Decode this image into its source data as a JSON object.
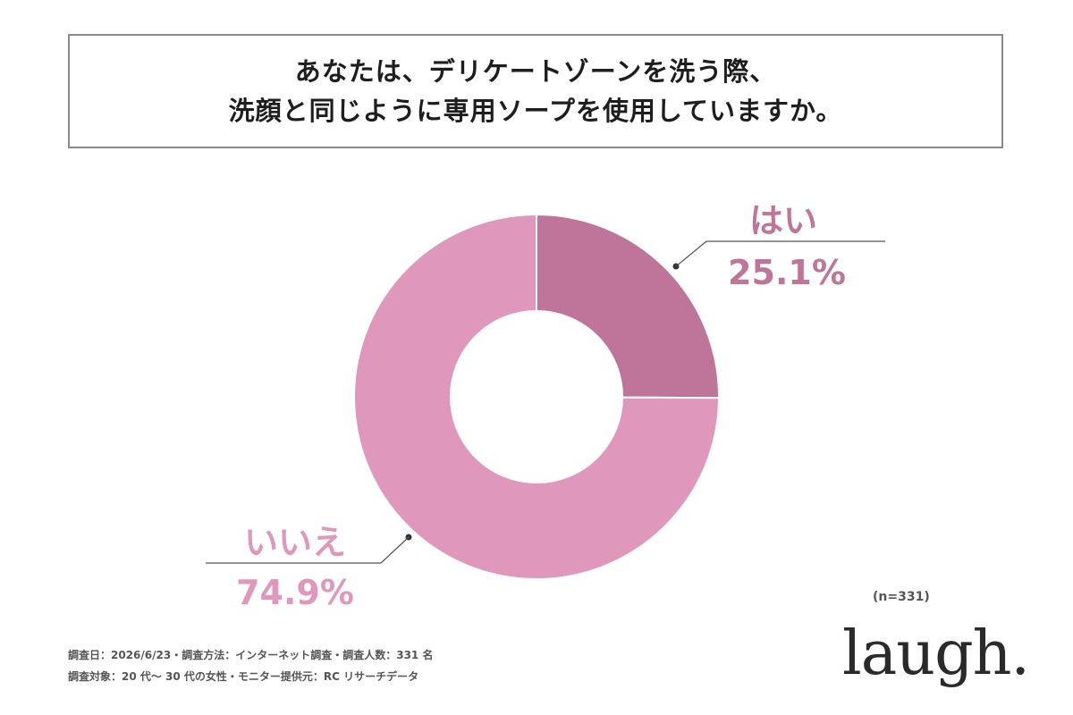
{
  "title": {
    "line1": "あなたは、デリケートゾーンを洗う際、",
    "line2": "洗顔と同じように専用ソープを使用していますか。"
  },
  "chart_data": {
    "type": "pie",
    "categories": [
      "はい",
      "いいえ"
    ],
    "values": [
      25.1,
      74.9
    ],
    "value_labels": [
      "25.1%",
      "74.9%"
    ],
    "colors": [
      "#bf7599",
      "#df98bb"
    ],
    "donut": true
  },
  "sample_size": "(n=331)",
  "footnotes": {
    "line1": "調査日：2026/6/23・調査方法：インターネット調査・調査人数：331 名",
    "line2": "調査対象：20 代〜 30 代の女性・モニター提供元：RC リサーチデータ"
  },
  "logo": {
    "text": "laugh."
  }
}
